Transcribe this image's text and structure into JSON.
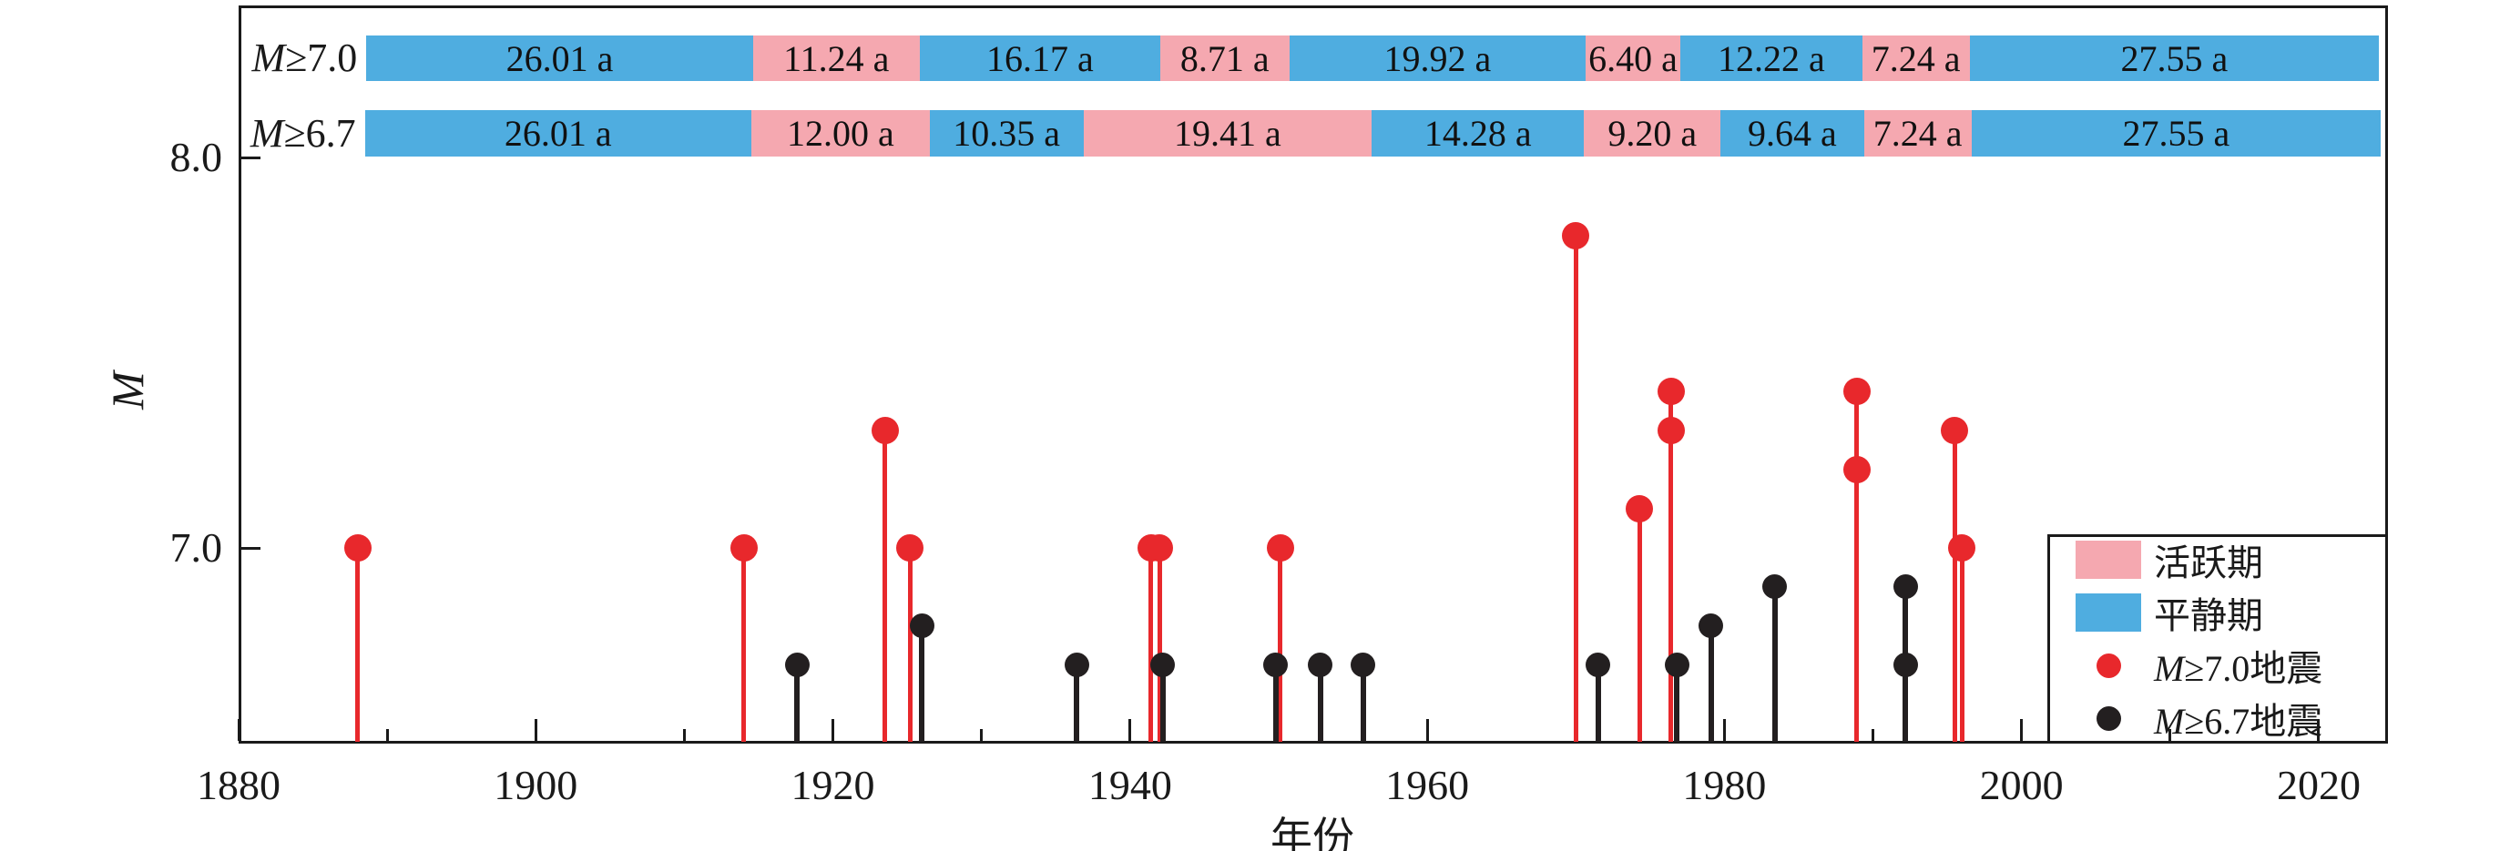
{
  "colors": {
    "active_pink": "#F5A8B0",
    "quiet_blue": "#4FADE0",
    "event_red": "#E8282C",
    "event_black": "#231F20",
    "axis": "#1a1a1a"
  },
  "axis": {
    "x_title": "年份",
    "y_title": "M",
    "x_major_ticks": [
      1880,
      1900,
      1920,
      1940,
      1960,
      1980,
      2000,
      2020
    ],
    "x_minor_ticks": [
      1890,
      1910,
      1930,
      1950,
      1970,
      1990,
      2010
    ],
    "y_ticks": [
      {
        "label": "8.0",
        "value": 8.0
      },
      {
        "label": "7.0",
        "value": 7.0
      }
    ],
    "x_range": [
      1880,
      2024.7
    ],
    "y_range": [
      6.5,
      8.39
    ]
  },
  "chart_data": {
    "type": "scatter",
    "description": "Stem plot of earthquakes with alternating quiet/active period bars",
    "period_rows": [
      {
        "label": "M≥7.0",
        "start_year": 1888.6,
        "segments": [
          {
            "label": "26.01 a",
            "duration_years": 26.01,
            "phase": "quiet"
          },
          {
            "label": "11.24 a",
            "duration_years": 11.24,
            "phase": "active"
          },
          {
            "label": "16.17 a",
            "duration_years": 16.17,
            "phase": "quiet"
          },
          {
            "label": "8.71 a",
            "duration_years": 8.71,
            "phase": "active"
          },
          {
            "label": "19.92 a",
            "duration_years": 19.92,
            "phase": "quiet"
          },
          {
            "label": "6.40 a",
            "duration_years": 6.4,
            "phase": "active"
          },
          {
            "label": "12.22 a",
            "duration_years": 12.22,
            "phase": "quiet"
          },
          {
            "label": "7.24 a",
            "duration_years": 7.24,
            "phase": "active"
          },
          {
            "label": "27.55 a",
            "duration_years": 27.55,
            "phase": "quiet"
          }
        ]
      },
      {
        "label": "M≥6.7",
        "start_year": 1888.5,
        "segments": [
          {
            "label": "26.01 a",
            "duration_years": 26.01,
            "phase": "quiet"
          },
          {
            "label": "12.00 a",
            "duration_years": 12.0,
            "phase": "active"
          },
          {
            "label": "10.35 a",
            "duration_years": 10.35,
            "phase": "quiet"
          },
          {
            "label": "19.41 a",
            "duration_years": 19.41,
            "phase": "active"
          },
          {
            "label": "14.28 a",
            "duration_years": 14.28,
            "phase": "quiet"
          },
          {
            "label": "9.20 a",
            "duration_years": 9.2,
            "phase": "active"
          },
          {
            "label": "9.64 a",
            "duration_years": 9.64,
            "phase": "quiet"
          },
          {
            "label": "7.24 a",
            "duration_years": 7.24,
            "phase": "active"
          },
          {
            "label": "27.55 a",
            "duration_years": 27.55,
            "phase": "quiet"
          }
        ]
      }
    ],
    "series": [
      {
        "name": "M≥7.0地震",
        "color_key": "event_red",
        "points": [
          {
            "year": 1888.0,
            "m": 7.0
          },
          {
            "year": 1914.0,
            "m": 7.0
          },
          {
            "year": 1923.5,
            "m": 7.3
          },
          {
            "year": 1925.2,
            "m": 7.0
          },
          {
            "year": 1941.4,
            "m": 7.0
          },
          {
            "year": 1942.0,
            "m": 7.0
          },
          {
            "year": 1950.1,
            "m": 7.0
          },
          {
            "year": 1970.0,
            "m": 7.8
          },
          {
            "year": 1974.3,
            "m": 7.1
          },
          {
            "year": 1976.4,
            "m": 7.4
          },
          {
            "year": 1976.4,
            "m": 7.3
          },
          {
            "year": 1988.9,
            "m": 7.4
          },
          {
            "year": 1988.9,
            "m": 7.2
          },
          {
            "year": 1995.5,
            "m": 7.3
          },
          {
            "year": 1996.0,
            "m": 7.0
          }
        ]
      },
      {
        "name": "M≥6.7地震",
        "color_key": "event_black",
        "points": [
          {
            "year": 1917.6,
            "m": 6.7
          },
          {
            "year": 1926.0,
            "m": 6.8
          },
          {
            "year": 1936.4,
            "m": 6.7
          },
          {
            "year": 1942.2,
            "m": 6.7
          },
          {
            "year": 1949.8,
            "m": 6.7
          },
          {
            "year": 1952.8,
            "m": 6.7
          },
          {
            "year": 1955.7,
            "m": 6.7
          },
          {
            "year": 1971.5,
            "m": 6.7
          },
          {
            "year": 1976.8,
            "m": 6.7
          },
          {
            "year": 1979.1,
            "m": 6.8
          },
          {
            "year": 1983.4,
            "m": 6.9
          },
          {
            "year": 1992.2,
            "m": 6.9
          },
          {
            "year": 1992.2,
            "m": 6.7
          }
        ]
      }
    ]
  },
  "legend": {
    "items": [
      {
        "type": "swatch",
        "color_key": "active_pink",
        "label": "活跃期"
      },
      {
        "type": "swatch",
        "color_key": "quiet_blue",
        "label": "平静期"
      },
      {
        "type": "dot",
        "color_key": "event_red",
        "label": "M≥7.0地震"
      },
      {
        "type": "dot",
        "color_key": "event_black",
        "label": "M≥6.7地震"
      }
    ]
  }
}
